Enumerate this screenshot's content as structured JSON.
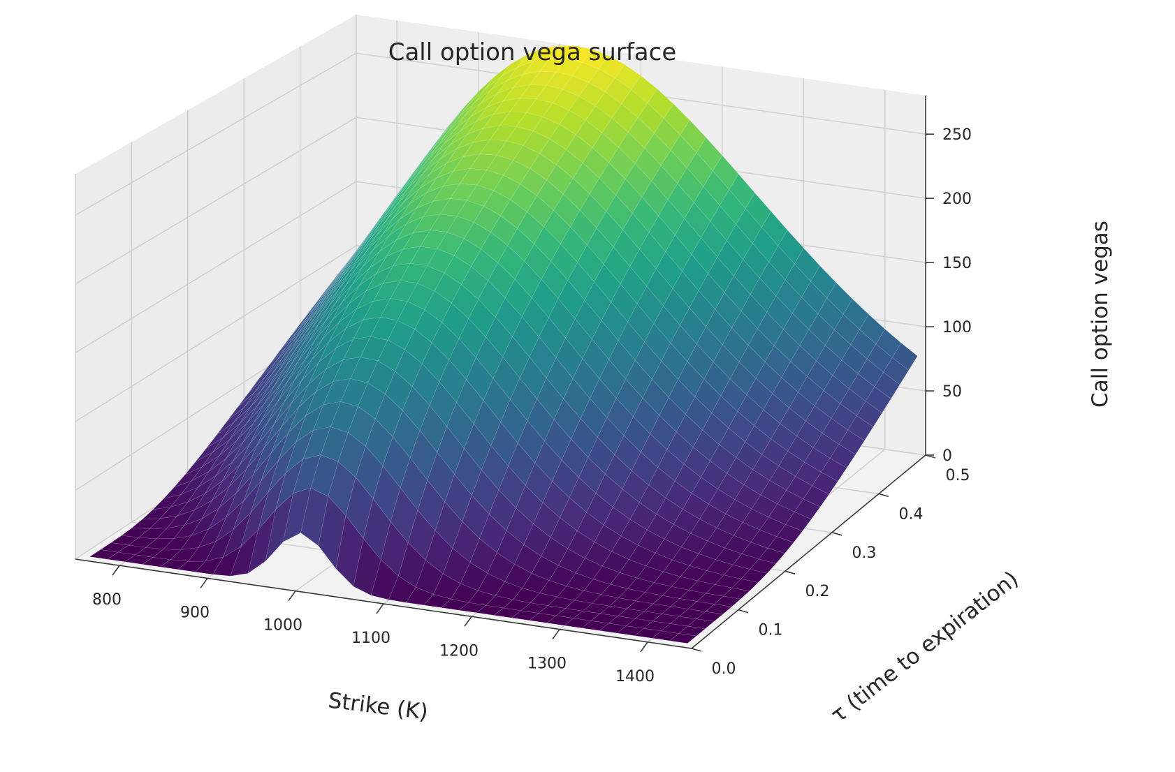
{
  "chart_data": {
    "type": "surface3d",
    "title": "Call option vega surface",
    "xlabel": "Strike (K)",
    "ylabel": "τ (time to expiration)",
    "zlabel": "Call option vegas",
    "x_ticks": [
      800,
      900,
      1000,
      1100,
      1200,
      1300,
      1400
    ],
    "y_ticks": [
      0.0,
      0.1,
      0.2,
      0.3,
      0.4,
      0.5
    ],
    "z_ticks": [
      0,
      50,
      100,
      150,
      200,
      250
    ],
    "x_tick_labels": [
      "800",
      "900",
      "1000",
      "1100",
      "1200",
      "1300",
      "1400"
    ],
    "y_tick_labels": [
      "0.0",
      "0.1",
      "0.2",
      "0.3",
      "0.4",
      "0.5"
    ],
    "z_tick_labels": [
      "0",
      "50",
      "100",
      "150",
      "200",
      "250"
    ],
    "xlim": [
      750,
      1450
    ],
    "ylim": [
      0.0,
      0.5
    ],
    "zlim": [
      0,
      280
    ],
    "surface_range": {
      "strike": [
        760,
        1440
      ],
      "tau": [
        0.01,
        0.5
      ]
    },
    "peak": {
      "strike": 1000,
      "tau": 0.5,
      "vega": 280
    },
    "colormap": "viridis",
    "colormap_stops": [
      "#440154",
      "#482878",
      "#3e4989",
      "#31688e",
      "#26828e",
      "#1f9e89",
      "#35b779",
      "#6ece58",
      "#b5de2b",
      "#fde725"
    ],
    "pane_color": "#f2f2f2",
    "grid_color": "#d0d0d0",
    "grid": true
  }
}
